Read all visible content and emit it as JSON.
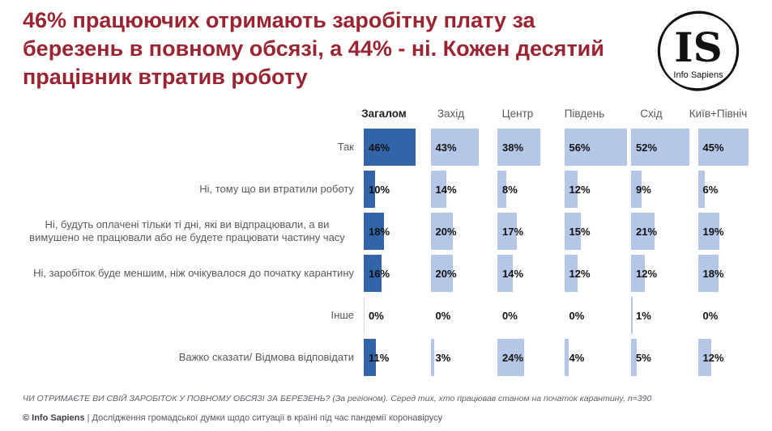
{
  "slide": {
    "title": "46% працюючих отримають заробітну плату за березень в повному обсязі, а 44% - ні. Кожен десятий працівник втратив роботу",
    "logo": {
      "initials": "IS",
      "name": "Info Sapiens"
    },
    "footnote_question": "ЧИ ОТРИМАЄТЕ ВИ СВІЙ ЗАРОБІТОК У ПОВНОМУ ОБСЯЗІ ЗА БЕРЕЗЕНЬ? (За регіоном). Серед тих, хто працював станом на початок карантину, n=390",
    "footnote_copyright_bold": "© Info Sapiens",
    "footnote_copyright_rest": " | Дослідження громадської думки щодо ситуації в країні під час пандемії коронавірусу"
  },
  "chart_data": {
    "type": "bar",
    "orientation": "horizontal",
    "title": "46% працюючих отримають заробітну плату за березень в повному обсязі, а 44% - ні. Кожен десятий працівник втратив роботу",
    "categories": [
      "Так",
      "Ні, тому що ви втратили роботу",
      "Ні, будуть оплачені тільки ті дні, які ви відпрацювали, а ви вимушено не працювали або не будете працювати частину часу",
      "Ні, заробіток буде меншим, ніж очікувалося до початку карантину",
      "Інше",
      "Важко сказати/ Відмова відповідати"
    ],
    "groups": [
      "Загалом",
      "Захід",
      "Центр",
      "Південь",
      "Схід",
      "Київ+Північ"
    ],
    "series": [
      {
        "name": "Загалом",
        "values": [
          46,
          10,
          18,
          16,
          0,
          11
        ]
      },
      {
        "name": "Захід",
        "values": [
          43,
          14,
          20,
          20,
          0,
          3
        ]
      },
      {
        "name": "Центр",
        "values": [
          38,
          8,
          17,
          14,
          0,
          24
        ]
      },
      {
        "name": "Південь",
        "values": [
          56,
          12,
          15,
          12,
          0,
          4
        ]
      },
      {
        "name": "Схід",
        "values": [
          52,
          9,
          21,
          12,
          1,
          5
        ]
      },
      {
        "name": "Київ+Північ",
        "values": [
          45,
          6,
          19,
          18,
          0,
          12
        ]
      }
    ],
    "value_suffix": "%",
    "xlim": [
      0,
      60
    ],
    "grid": false,
    "legend": "none",
    "highlight_color": "#3264a8",
    "base_color": "#b4c7e7",
    "zero_tick_color": "#d6d6d6"
  }
}
